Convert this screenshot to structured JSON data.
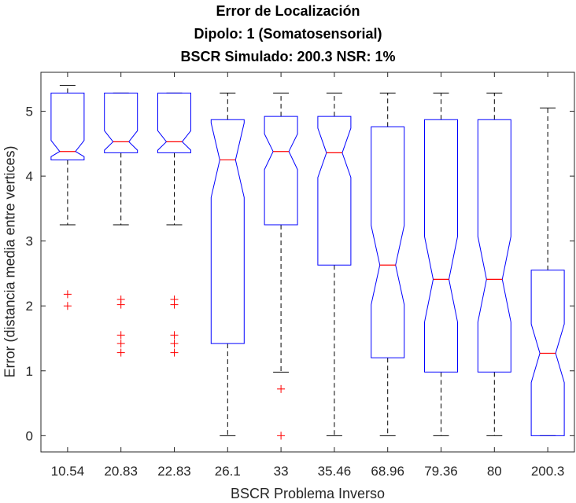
{
  "title_lines": [
    "Error de Localización",
    "Dipolo: 1 (Somatosensorial)",
    "BSCR Simulado: 200.3 NSR: 1%"
  ],
  "chart_data": {
    "type": "boxplot",
    "notched": true,
    "xlabel": "BSCR Problema Inverso",
    "ylabel": "Error (distancia media entre vertices)",
    "categories": [
      "10.54",
      "20.83",
      "22.83",
      "26.1",
      "33",
      "35.46",
      "68.96",
      "79.36",
      "80",
      "200.3"
    ],
    "ylim": [
      -0.25,
      5.6
    ],
    "yticks": [
      0,
      1,
      2,
      3,
      4,
      5
    ],
    "grid": false,
    "box_color": "#0000ff",
    "median_color": "#ff0000",
    "outlier_color": "#ff0000",
    "whisker_color": "#000000",
    "boxes": [
      {
        "q1": 4.25,
        "median": 4.38,
        "q3": 5.28,
        "notch_low": 4.3,
        "notch_high": 4.55,
        "whisker_low": 3.25,
        "whisker_high": 5.4,
        "outliers": [
          2.18,
          2.0
        ]
      },
      {
        "q1": 4.36,
        "median": 4.53,
        "q3": 5.28,
        "notch_low": 4.4,
        "notch_high": 4.7,
        "whisker_low": 3.25,
        "whisker_high": 5.28,
        "outliers": [
          2.1,
          2.02,
          1.55,
          1.42,
          1.28
        ]
      },
      {
        "q1": 4.36,
        "median": 4.53,
        "q3": 5.28,
        "notch_low": 4.4,
        "notch_high": 4.7,
        "whisker_low": 3.25,
        "whisker_high": 5.28,
        "outliers": [
          2.1,
          2.02,
          1.55,
          1.42,
          1.28
        ]
      },
      {
        "q1": 1.42,
        "median": 4.25,
        "q3": 4.87,
        "notch_low": 3.67,
        "notch_high": 4.82,
        "whisker_low": 0.0,
        "whisker_high": 5.28,
        "outliers": []
      },
      {
        "q1": 3.25,
        "median": 4.38,
        "q3": 4.92,
        "notch_low": 4.1,
        "notch_high": 4.65,
        "whisker_low": 0.98,
        "whisker_high": 5.28,
        "outliers": [
          0.72,
          0.0
        ]
      },
      {
        "q1": 2.63,
        "median": 4.36,
        "q3": 4.92,
        "notch_low": 3.98,
        "notch_high": 4.74,
        "whisker_low": 0.0,
        "whisker_high": 5.28,
        "outliers": []
      },
      {
        "q1": 1.2,
        "median": 2.63,
        "q3": 4.76,
        "notch_low": 2.02,
        "notch_high": 3.24,
        "whisker_low": 0.0,
        "whisker_high": 5.28,
        "outliers": []
      },
      {
        "q1": 0.98,
        "median": 2.41,
        "q3": 4.87,
        "notch_low": 1.75,
        "notch_high": 3.07,
        "whisker_low": 0.0,
        "whisker_high": 5.28,
        "outliers": []
      },
      {
        "q1": 0.98,
        "median": 2.41,
        "q3": 4.87,
        "notch_low": 1.75,
        "notch_high": 3.07,
        "whisker_low": 0.0,
        "whisker_high": 5.28,
        "outliers": []
      },
      {
        "q1": 0.0,
        "median": 1.27,
        "q3": 2.55,
        "notch_low": 0.82,
        "notch_high": 1.72,
        "whisker_low": 0.0,
        "whisker_high": 5.05,
        "outliers": []
      }
    ]
  }
}
